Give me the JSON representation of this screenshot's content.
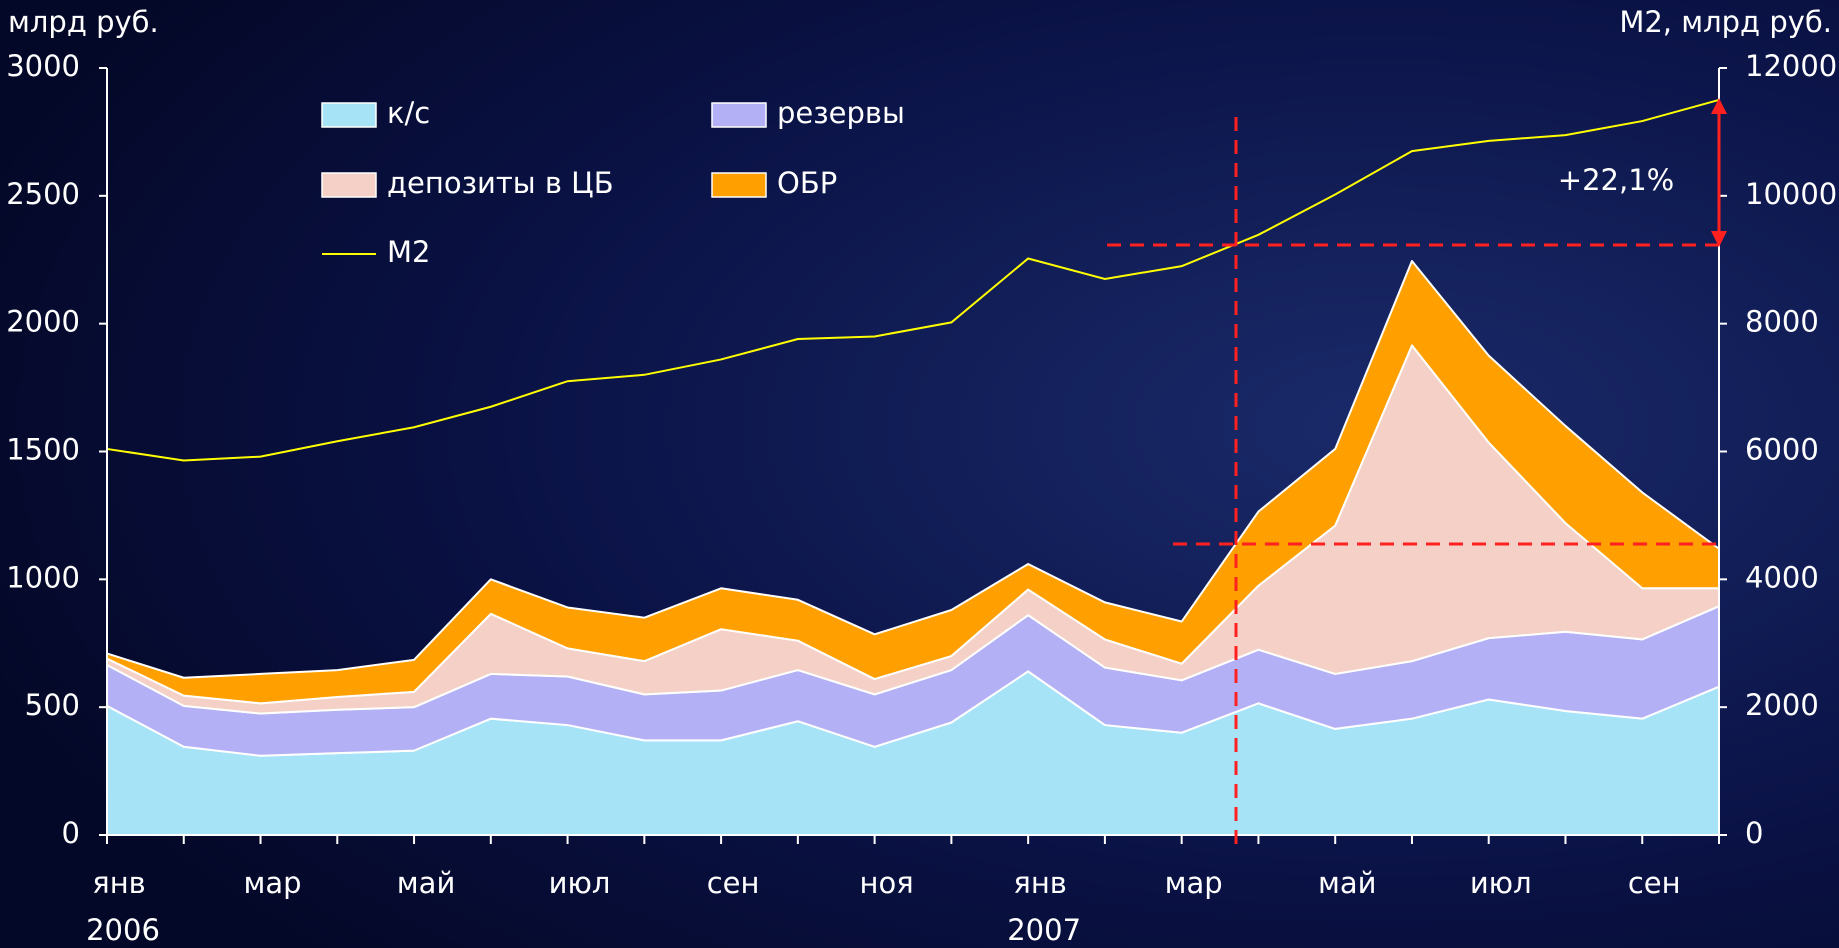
{
  "chart_data": {
    "type": "stacked_area",
    "ylabel": "млрд руб.",
    "y2label": "M2, млрд руб.",
    "categories": [
      "янв",
      null,
      "мар",
      null,
      "май",
      null,
      "июл",
      null,
      "сен",
      null,
      "ноя",
      null,
      "янв",
      null,
      "мар",
      null,
      "май",
      null,
      "июл",
      null,
      "сен",
      null
    ],
    "x_groups": [
      {
        "label": "2006",
        "start": 0
      },
      {
        "label": "2007",
        "start": 12
      }
    ],
    "series": [
      {
        "name": "к/с",
        "color": "#a6e3f7",
        "values": [
          505,
          345,
          310,
          320,
          330,
          455,
          430,
          370,
          370,
          445,
          345,
          440,
          640,
          430,
          400,
          515,
          415,
          455,
          530,
          485,
          455,
          580
        ]
      },
      {
        "name": "резервы",
        "color": "#b4b0f5",
        "values": [
          160,
          160,
          165,
          170,
          170,
          175,
          190,
          180,
          195,
          200,
          205,
          205,
          220,
          225,
          205,
          210,
          215,
          225,
          240,
          310,
          310,
          315
        ]
      },
      {
        "name": "депозиты в ЦБ",
        "color": "#f4d0c6",
        "values": [
          25,
          40,
          40,
          50,
          60,
          235,
          110,
          130,
          240,
          115,
          60,
          55,
          100,
          110,
          65,
          250,
          580,
          1235,
          765,
          425,
          200,
          70
        ]
      },
      {
        "name": "ОБР",
        "color": "#ffa000",
        "values": [
          20,
          70,
          115,
          105,
          125,
          135,
          160,
          170,
          160,
          160,
          175,
          180,
          100,
          145,
          165,
          290,
          300,
          330,
          340,
          380,
          375,
          155
        ]
      },
      {
        "name": "M2",
        "color": "#ffff00",
        "type": "line",
        "axis": "y2",
        "values": [
          6040,
          5860,
          5920,
          6160,
          6380,
          6700,
          7100,
          7200,
          7440,
          7760,
          7800,
          8020,
          9020,
          8700,
          8900,
          9390,
          10020,
          10700,
          10860,
          10950,
          11170,
          11500
        ]
      }
    ],
    "ylim": [
      0,
      3000
    ],
    "yticks": [
      0,
      500,
      1000,
      1500,
      2000,
      2500,
      3000
    ],
    "y2lim": [
      0,
      12000
    ],
    "y2ticks": [
      0,
      2000,
      4000,
      6000,
      8000,
      10000,
      12000
    ],
    "annotations": [
      "+22,1%"
    ]
  }
}
